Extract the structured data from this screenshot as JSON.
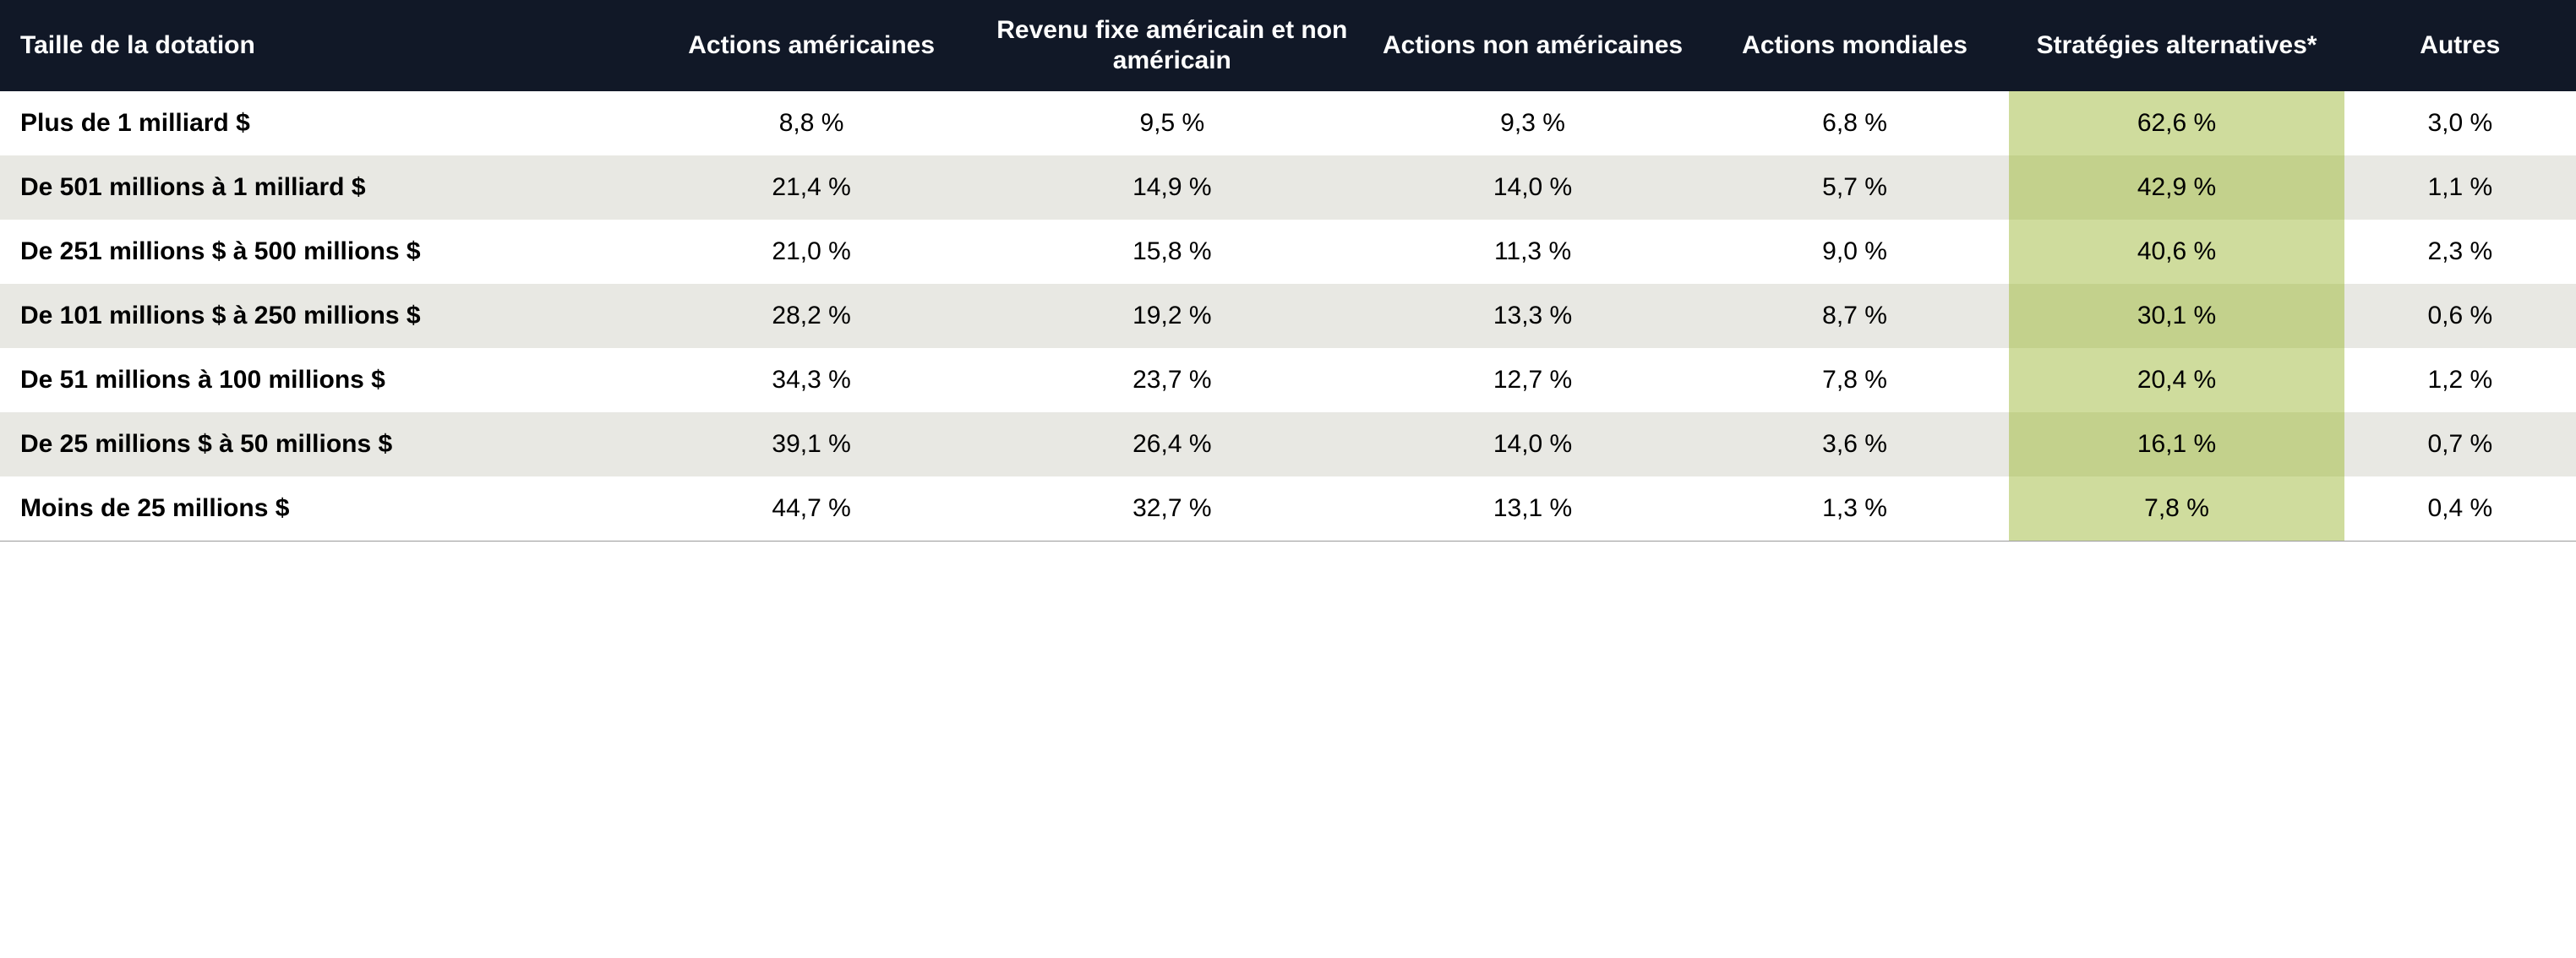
{
  "table": {
    "header_bg": "#111827",
    "header_color": "#ffffff",
    "row_odd_bg": "#ffffff",
    "row_even_bg": "#e8e8e3",
    "highlight_odd_bg": "#cfdc9d",
    "highlight_even_bg": "#c3d18c",
    "text_color": "#000000",
    "header_fontsize": 30,
    "body_fontsize": 30,
    "col_widths": [
      "25%",
      "13%",
      "15%",
      "13%",
      "12%",
      "13%",
      "9%"
    ],
    "highlight_col_index": 5,
    "columns": [
      "Taille de la dotation",
      "Actions américaines",
      "Revenu fixe américain et non américain",
      "Actions non américaines",
      "Actions mondiales",
      "Stratégies alternatives*",
      "Autres"
    ],
    "rows": [
      {
        "label": "Plus de 1 milliard $",
        "cells": [
          "8,8 %",
          "9,5 %",
          "9,3 %",
          "6,8 %",
          "62,6 %",
          "3,0 %"
        ]
      },
      {
        "label": "De 501 millions à 1 milliard $",
        "cells": [
          "21,4 %",
          "14,9 %",
          "14,0 %",
          "5,7 %",
          "42,9 %",
          "1,1 %"
        ]
      },
      {
        "label": "De 251 millions $ à 500 millions $",
        "cells": [
          "21,0 %",
          "15,8 %",
          "11,3 %",
          "9,0 %",
          "40,6 %",
          "2,3 %"
        ]
      },
      {
        "label": "De 101 millions $ à 250 millions $",
        "cells": [
          "28,2 %",
          "19,2 %",
          "13,3 %",
          "8,7 %",
          "30,1 %",
          "0,6 %"
        ]
      },
      {
        "label": "De 51 millions à 100 millions $",
        "cells": [
          "34,3 %",
          "23,7 %",
          "12,7 %",
          "7,8 %",
          "20,4 %",
          "1,2 %"
        ]
      },
      {
        "label": "De 25 millions $ à 50 millions $",
        "cells": [
          "39,1 %",
          "26,4 %",
          "14,0 %",
          "3,6 %",
          "16,1 %",
          "0,7 %"
        ]
      },
      {
        "label": "Moins de 25 millions $",
        "cells": [
          "44,7 %",
          "32,7 %",
          "13,1 %",
          "1,3 %",
          "7,8 %",
          "0,4 %"
        ]
      }
    ]
  }
}
